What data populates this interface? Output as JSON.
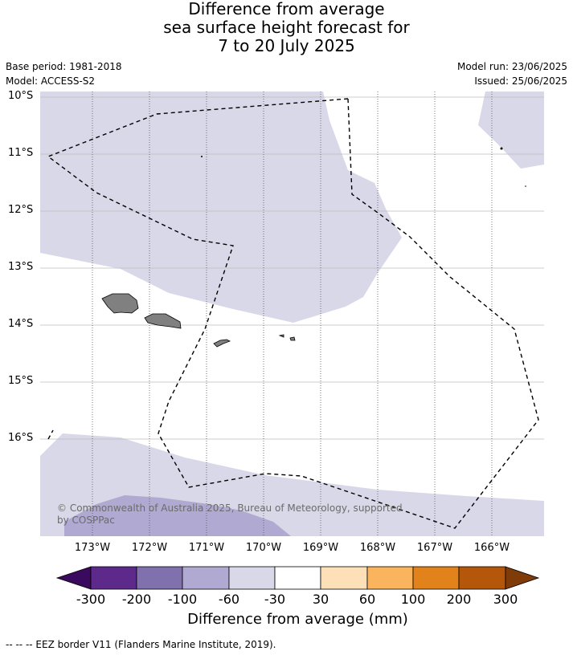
{
  "title": {
    "line1": "Difference from average",
    "line2": "sea surface height forecast for",
    "line3": "7 to 20 July 2025"
  },
  "meta": {
    "base_period": "Base period: 1981-2018",
    "model": "Model: ACCESS-S2",
    "model_run": "Model run: 23/06/2025",
    "issued": "Issued: 25/06/2025"
  },
  "map": {
    "latitude_labels": [
      "10°S",
      "11°S",
      "12°S",
      "13°S",
      "14°S",
      "15°S",
      "16°S"
    ],
    "longitude_labels": [
      "173°W",
      "172°W",
      "171°W",
      "170°W",
      "169°W",
      "168°W",
      "167°W",
      "166°W"
    ],
    "land_color": "#808080",
    "class_colors": {
      "minus_100_to_minus_60": "#b0a9d1",
      "minus_60_to_minus_30": "#d8d8e8"
    },
    "copyright": "© Commonwealth of Australia 2025, Bureau of Meteorology, supported by COSPPac"
  },
  "colorbar": {
    "colors": [
      "#3a0a5e",
      "#5d2a8c",
      "#8071ae",
      "#b0a9d1",
      "#d8d8e8",
      "#ffffff",
      "#fde0b7",
      "#fab45e",
      "#e2821b",
      "#b5570b",
      "#7f3b08"
    ],
    "labels": [
      "-300",
      "-200",
      "-100",
      "-60",
      "-30",
      "30",
      "60",
      "100",
      "200",
      "300"
    ],
    "title": "Difference from average (mm)"
  },
  "footnote": "-- -- -- EEZ border V11 (Flanders Marine Institute, 2019)."
}
